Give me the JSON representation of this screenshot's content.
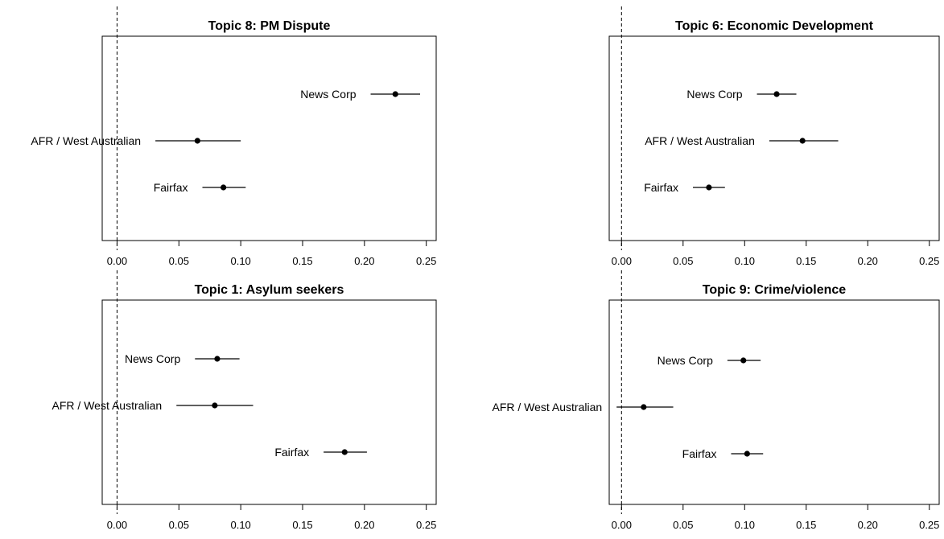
{
  "chart_data": [
    {
      "type": "scatter",
      "title": "Topic 8: PM Dispute",
      "xlabel": "",
      "ylabel": "",
      "xlim": [
        -0.012,
        0.258
      ],
      "xticks": [
        "0.00",
        "0.05",
        "0.10",
        "0.15",
        "0.20",
        "0.25"
      ],
      "xtick_values": [
        0,
        0.05,
        0.1,
        0.15,
        0.2,
        0.25
      ],
      "reference_line": {
        "x": 0,
        "style": "dashed"
      },
      "points": [
        {
          "label": "News Corp",
          "estimate": 0.225,
          "ci": [
            0.205,
            0.245
          ]
        },
        {
          "label": "AFR / West Australian",
          "estimate": 0.065,
          "ci": [
            0.031,
            0.1
          ]
        },
        {
          "label": "Fairfax",
          "estimate": 0.086,
          "ci": [
            0.069,
            0.104
          ]
        }
      ]
    },
    {
      "type": "scatter",
      "title": "Topic 6: Economic Development",
      "xlabel": "",
      "ylabel": "",
      "xlim": [
        -0.01,
        0.258
      ],
      "xticks": [
        "0.00",
        "0.05",
        "0.10",
        "0.15",
        "0.20",
        "0.25"
      ],
      "xtick_values": [
        0,
        0.05,
        0.1,
        0.15,
        0.2,
        0.25
      ],
      "reference_line": {
        "x": 0,
        "style": "dashed"
      },
      "points": [
        {
          "label": "News Corp",
          "estimate": 0.126,
          "ci": [
            0.11,
            0.142
          ]
        },
        {
          "label": "AFR / West Australian",
          "estimate": 0.147,
          "ci": [
            0.12,
            0.176
          ]
        },
        {
          "label": "Fairfax",
          "estimate": 0.071,
          "ci": [
            0.058,
            0.084
          ]
        }
      ]
    },
    {
      "type": "scatter",
      "title": "Topic 1: Asylum seekers",
      "xlabel": "",
      "ylabel": "",
      "xlim": [
        -0.012,
        0.258
      ],
      "xticks": [
        "0.00",
        "0.05",
        "0.10",
        "0.15",
        "0.20",
        "0.25"
      ],
      "xtick_values": [
        0,
        0.05,
        0.1,
        0.15,
        0.2,
        0.25
      ],
      "reference_line": {
        "x": 0,
        "style": "dashed"
      },
      "points": [
        {
          "label": "News Corp",
          "estimate": 0.081,
          "ci": [
            0.063,
            0.099
          ]
        },
        {
          "label": "AFR / West Australian",
          "estimate": 0.079,
          "ci": [
            0.048,
            0.11
          ]
        },
        {
          "label": "Fairfax",
          "estimate": 0.184,
          "ci": [
            0.167,
            0.202
          ]
        }
      ]
    },
    {
      "type": "scatter",
      "title": "Topic 9: Crime/violence",
      "xlabel": "",
      "ylabel": "",
      "xlim": [
        -0.01,
        0.258
      ],
      "xticks": [
        "0.00",
        "0.05",
        "0.10",
        "0.15",
        "0.20",
        "0.25"
      ],
      "xtick_values": [
        0,
        0.05,
        0.1,
        0.15,
        0.2,
        0.25
      ],
      "reference_line": {
        "x": 0,
        "style": "dashed"
      },
      "points": [
        {
          "label": "News Corp",
          "estimate": 0.099,
          "ci": [
            0.086,
            0.113
          ]
        },
        {
          "label": "AFR / West Australian",
          "estimate": 0.018,
          "ci": [
            -0.004,
            0.042
          ]
        },
        {
          "label": "Fairfax",
          "estimate": 0.102,
          "ci": [
            0.089,
            0.115
          ]
        }
      ]
    }
  ]
}
